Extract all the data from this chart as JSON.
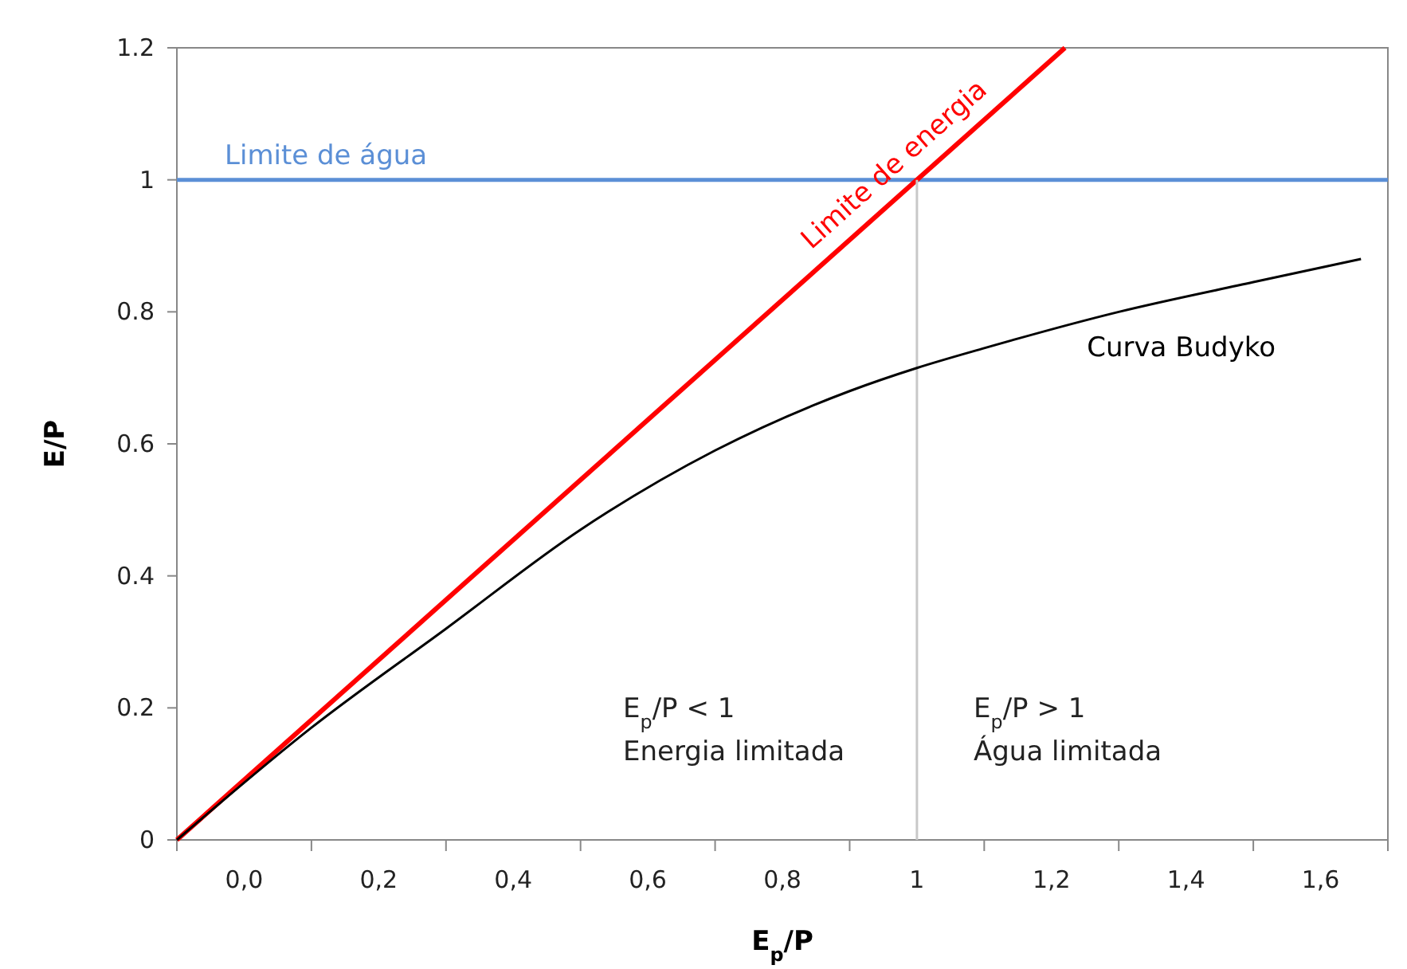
{
  "chart_data": {
    "type": "line",
    "xlabel": "E$_{p}$/P",
    "ylabel": "E/P",
    "xlim": [
      -0.1,
      1.7
    ],
    "ylim": [
      0,
      1.2
    ],
    "xticks": [
      {
        "value": -0.1,
        "label": null
      },
      {
        "value": 0,
        "label": "0,0"
      },
      {
        "value": 0.1,
        "label": null
      },
      {
        "value": 0.2,
        "label": "0,2"
      },
      {
        "value": 0.3,
        "label": null
      },
      {
        "value": 0.4,
        "label": "0,4"
      },
      {
        "value": 0.5,
        "label": null
      },
      {
        "value": 0.6,
        "label": "0,6"
      },
      {
        "value": 0.7,
        "label": null
      },
      {
        "value": 0.8,
        "label": "0,8"
      },
      {
        "value": 0.9,
        "label": null
      },
      {
        "value": 1,
        "label": "1"
      },
      {
        "value": 1.1,
        "label": null
      },
      {
        "value": 1.2,
        "label": "1,2"
      },
      {
        "value": 1.3,
        "label": null
      },
      {
        "value": 1.4,
        "label": "1,4"
      },
      {
        "value": 1.5,
        "label": null
      },
      {
        "value": 1.6,
        "label": "1,6"
      },
      {
        "value": 1.7,
        "label": null
      }
    ],
    "yticks": [
      0,
      0.2,
      0.4,
      0.6,
      0.8,
      1,
      1.2
    ],
    "grid": false,
    "marker": "none",
    "series": [
      {
        "name": "Limite de energia",
        "color": "#ff0000",
        "x": [
          -0.1,
          1.22
        ],
        "values": [
          0,
          1.2
        ]
      },
      {
        "color": "#c8c8c8",
        "x": [
          1,
          1
        ],
        "values": [
          0,
          1
        ]
      },
      {
        "name": "Curva Budyko",
        "color": "#000000",
        "x": [
          -0.1,
          0.1,
          0.3,
          0.5,
          0.7,
          0.9,
          1,
          1.1,
          1.3,
          1.5,
          1.66
        ],
        "values": [
          0,
          0.17,
          0.32,
          0.47,
          0.59,
          0.68,
          0.715,
          0.745,
          0.8,
          0.845,
          0.88
        ]
      }
    ],
    "ref_lines": [
      {
        "axis": "y",
        "value": 1,
        "label": "Limite de água",
        "color": "#5b8fd6"
      }
    ],
    "annotations": [
      "E$_{p}$/P < 1\nEnergia limitada",
      "E$_{p}$/P > 1\nÁgua limitada"
    ]
  }
}
